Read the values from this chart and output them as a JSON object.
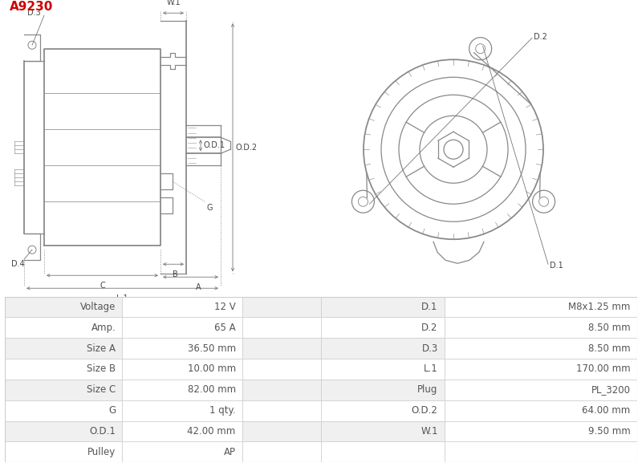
{
  "title": "A9230",
  "title_color": "#cc0000",
  "table_data": [
    [
      "Voltage",
      "12 V",
      "D.1",
      "M8x1.25 mm"
    ],
    [
      "Amp.",
      "65 A",
      "D.2",
      "8.50 mm"
    ],
    [
      "Size A",
      "36.50 mm",
      "D.3",
      "8.50 mm"
    ],
    [
      "Size B",
      "10.00 mm",
      "L.1",
      "170.00 mm"
    ],
    [
      "Size C",
      "82.00 mm",
      "Plug",
      "PL_3200"
    ],
    [
      "G",
      "1 qty.",
      "O.D.2",
      "64.00 mm"
    ],
    [
      "O.D.1",
      "42.00 mm",
      "W.1",
      "9.50 mm"
    ],
    [
      "Pulley",
      "AP",
      "",
      ""
    ]
  ],
  "row_bg_odd": "#f0f0f0",
  "row_bg_even": "#ffffff",
  "border_color": "#cccccc",
  "text_color": "#555555",
  "font_size": 8.5,
  "bg_color": "#ffffff",
  "draw_color": "#888888",
  "draw_lw": 0.9
}
